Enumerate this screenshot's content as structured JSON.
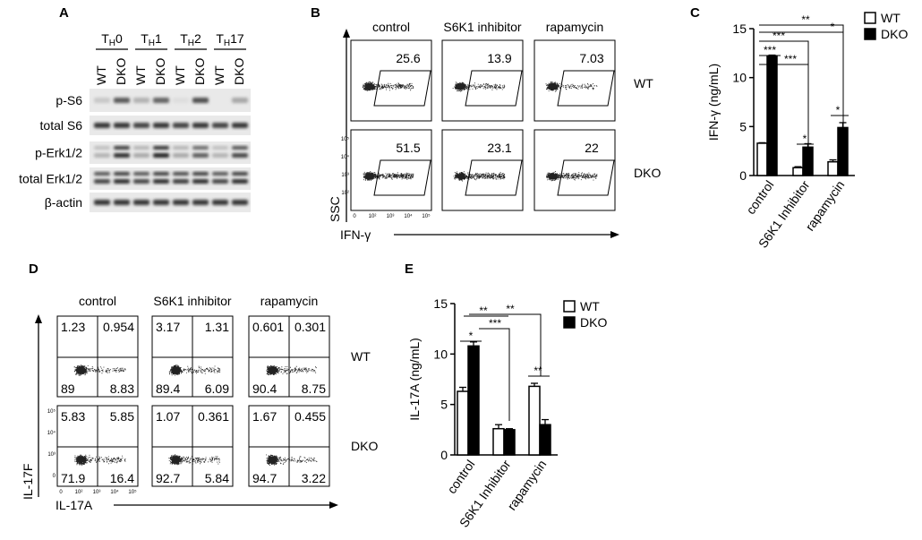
{
  "panel_letters": {
    "A": "A",
    "B": "B",
    "C": "C",
    "D": "D",
    "E": "E"
  },
  "panelA": {
    "groups": [
      {
        "main": "T",
        "sub": "H",
        "suffix": "0"
      },
      {
        "main": "T",
        "sub": "H",
        "suffix": "1"
      },
      {
        "main": "T",
        "sub": "H",
        "suffix": "2"
      },
      {
        "main": "T",
        "sub": "H",
        "suffix": "17"
      }
    ],
    "lanes": [
      "WT",
      "DKO",
      "WT",
      "DKO",
      "WT",
      "DKO",
      "WT",
      "DKO"
    ],
    "rows": [
      "p-S6",
      "total S6",
      "p-Erk1/2",
      "total Erk1/2",
      "β-actin"
    ]
  },
  "panelB": {
    "conditions": [
      "control",
      "S6K1 inhibitor",
      "rapamycin"
    ],
    "genotypes": [
      "WT",
      "DKO"
    ],
    "values": [
      [
        "25.6",
        "13.9",
        "7.03"
      ],
      [
        "51.5",
        "23.1",
        "22"
      ]
    ],
    "y_axis": "SSC",
    "x_axis": "IFN-γ",
    "y_ticks": [
      "10⁵",
      "10⁴",
      "10³",
      "10²"
    ],
    "x_ticks": [
      "0",
      "10²",
      "10³",
      "10⁴",
      "10⁵"
    ]
  },
  "panelD": {
    "conditions": [
      "control",
      "S6K1 inhibitor",
      "rapamycin"
    ],
    "genotypes": [
      "WT",
      "DKO"
    ],
    "quadrants": [
      [
        [
          "1.23",
          "0.954",
          "89",
          "8.83"
        ],
        [
          "3.17",
          "1.31",
          "89.4",
          "6.09"
        ],
        [
          "0.601",
          "0.301",
          "90.4",
          "8.75"
        ]
      ],
      [
        [
          "5.83",
          "5.85",
          "71.9",
          "16.4"
        ],
        [
          "1.07",
          "0.361",
          "92.7",
          "5.84"
        ],
        [
          "1.67",
          "0.455",
          "94.7",
          "3.22"
        ]
      ]
    ],
    "y_axis": "IL-17F",
    "x_axis": "IL-17A",
    "y_ticks": [
      "10⁵",
      "10⁴",
      "10³",
      "0"
    ],
    "x_ticks": [
      "0",
      "10²",
      "10³",
      "10⁴",
      "10⁵"
    ]
  },
  "chart_data": [
    {
      "type": "bar",
      "ylabel": "IFN-γ (ng/mL)",
      "categories": [
        "control",
        "S6K1 Inhibitor",
        "rapamycin"
      ],
      "series": [
        {
          "name": "WT",
          "values": [
            3.3,
            0.8,
            1.4
          ],
          "errors": [
            0.05,
            0.1,
            0.2
          ]
        },
        {
          "name": "DKO",
          "values": [
            12.2,
            2.9,
            4.9
          ],
          "errors": [
            0.1,
            0.35,
            0.5
          ]
        }
      ],
      "ylim": [
        0,
        15
      ],
      "yticks": [
        0,
        5,
        10,
        15
      ],
      "significance": [
        "***",
        "***",
        "***",
        "*",
        "**",
        "*",
        "*"
      ],
      "legend": "top-right"
    },
    {
      "type": "bar",
      "ylabel": "IL-17A (ng/mL)",
      "categories": [
        "control",
        "S6K1 Inhibitor",
        "rapamycin"
      ],
      "series": [
        {
          "name": "WT",
          "values": [
            6.3,
            2.6,
            6.8
          ],
          "errors": [
            0.4,
            0.4,
            0.3
          ]
        },
        {
          "name": "DKO",
          "values": [
            10.8,
            2.5,
            3.0
          ],
          "errors": [
            0.4,
            0.1,
            0.5
          ]
        }
      ],
      "ylim": [
        0,
        15
      ],
      "yticks": [
        0,
        5,
        10,
        15
      ],
      "significance": [
        "*",
        "**",
        "***",
        "**",
        "**"
      ],
      "legend": "top-right"
    }
  ]
}
